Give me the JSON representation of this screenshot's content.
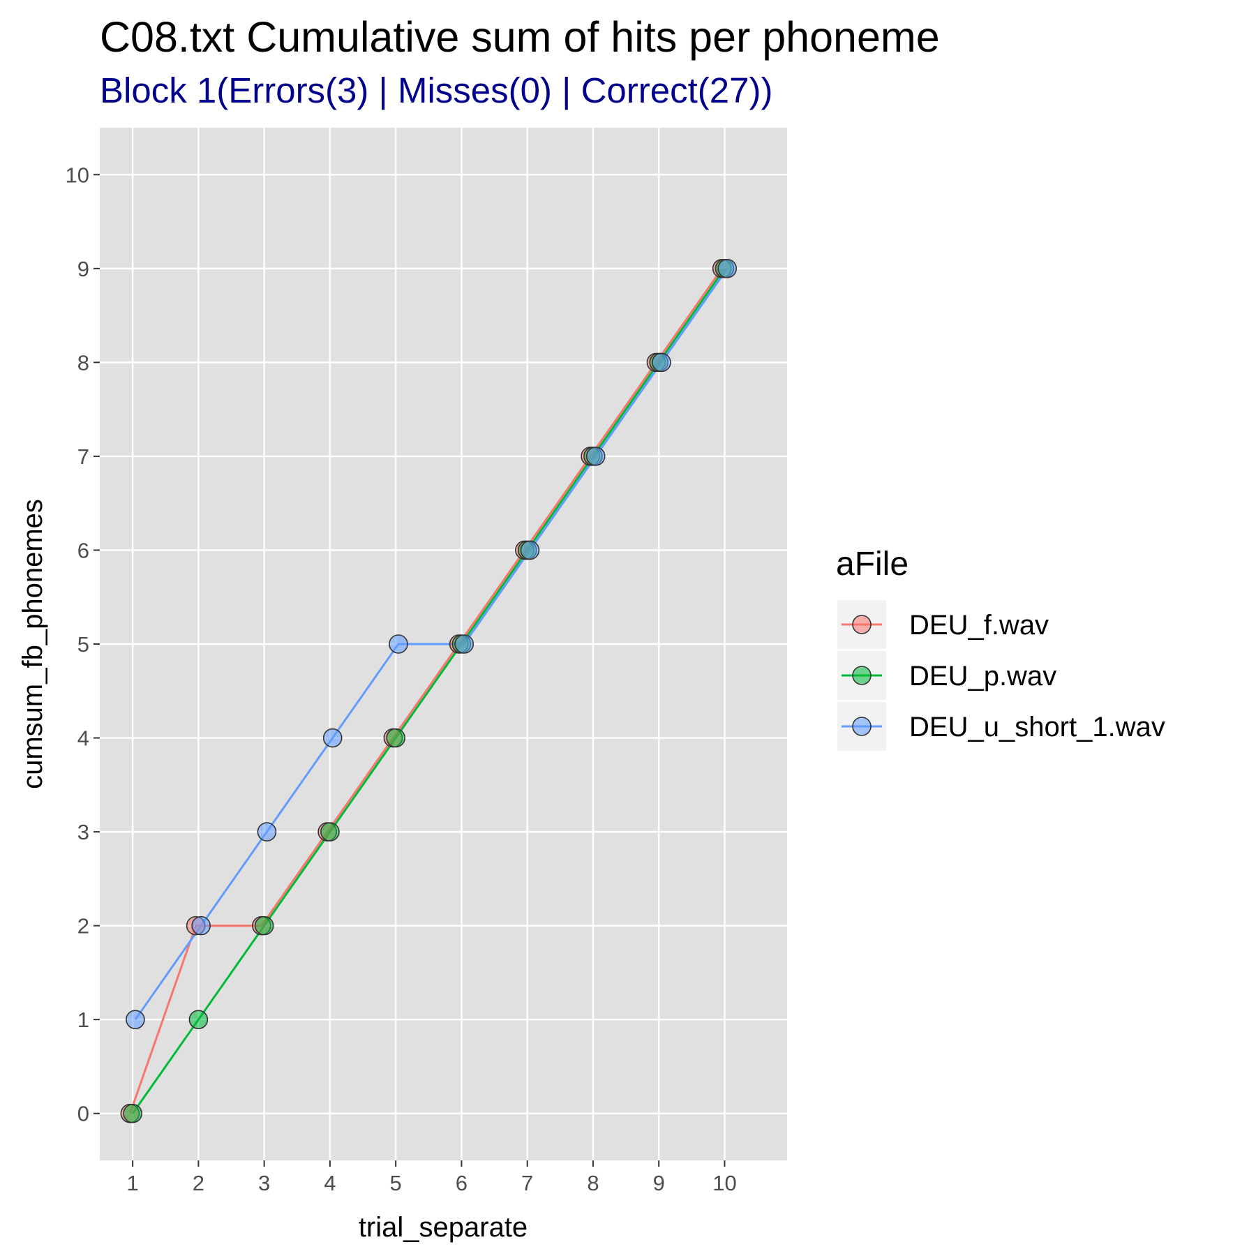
{
  "chart_data": {
    "type": "line",
    "title": "C08.txt Cumulative sum of hits per phoneme",
    "subtitle": "Block 1(Errors(3) | Misses(0) | Correct(27))",
    "xlabel": "trial_separate",
    "ylabel": "cumsum_fb_phonemes",
    "x_ticks": [
      1,
      2,
      3,
      4,
      5,
      6,
      7,
      8,
      9,
      10
    ],
    "y_ticks": [
      0,
      1,
      2,
      3,
      4,
      5,
      6,
      7,
      8,
      9,
      10
    ],
    "xlim": [
      0.5,
      10.95
    ],
    "ylim": [
      -0.5,
      10.5
    ],
    "grid": true,
    "legend": {
      "title": "aFile",
      "position": "right"
    },
    "series": [
      {
        "name": "DEU_f.wav",
        "color": "#F8766D",
        "x": [
          1,
          2,
          3,
          4,
          5,
          6,
          7,
          8,
          9,
          10
        ],
        "y": [
          0,
          2,
          2,
          3,
          4,
          5,
          6,
          7,
          8,
          9
        ]
      },
      {
        "name": "DEU_p.wav",
        "color": "#00BA38",
        "x": [
          1,
          2,
          3,
          4,
          5,
          6,
          7,
          8,
          9,
          10
        ],
        "y": [
          0,
          1,
          2,
          3,
          4,
          5,
          6,
          7,
          8,
          9
        ]
      },
      {
        "name": "DEU_u_short_1.wav",
        "color": "#619CFF",
        "x": [
          1,
          2,
          3,
          4,
          5,
          6,
          7,
          8,
          9,
          10
        ],
        "y": [
          1,
          2,
          3,
          4,
          5,
          5,
          6,
          7,
          8,
          9
        ]
      }
    ]
  }
}
